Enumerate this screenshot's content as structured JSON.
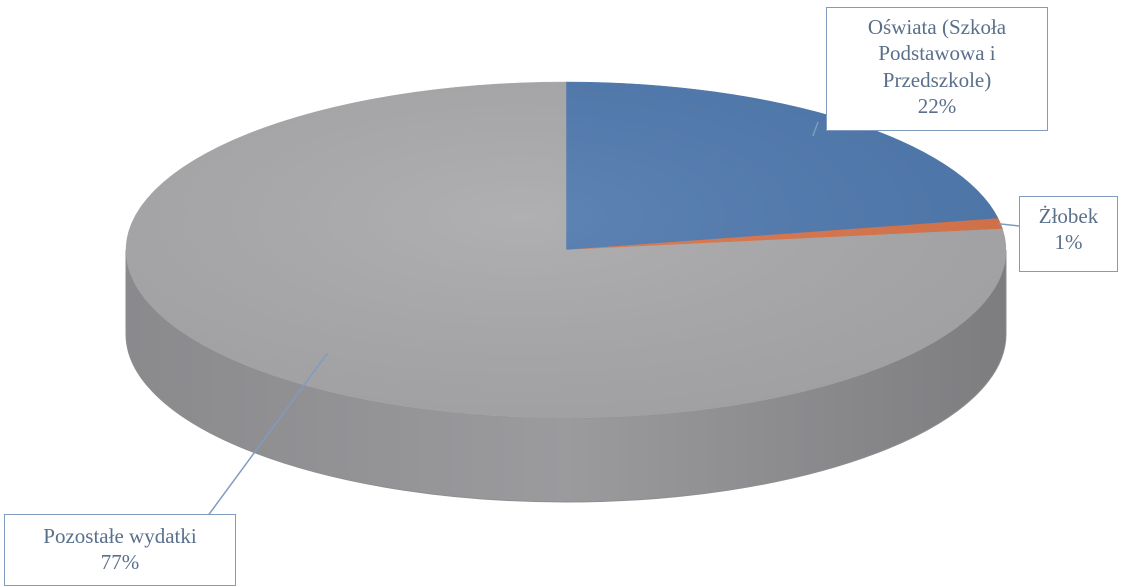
{
  "chart_data": {
    "type": "pie",
    "title": "",
    "slices": [
      {
        "label_lines": [
          "Oświata (Szkoła",
          "Podstawowa i",
          "Przedszkole)"
        ],
        "label": "Oświata (Szkoła Podstawowa i Przedszkole)",
        "percent_label": "22%",
        "value": 22,
        "color": "#4f79ae"
      },
      {
        "label_lines": [
          "Żłobek"
        ],
        "label": "Żłobek",
        "percent_label": "1%",
        "value": 1,
        "color": "#d9744a"
      },
      {
        "label_lines": [
          "Pozostałe wydatki"
        ],
        "label": "Pozostałe wydatki",
        "percent_label": "77%",
        "value": 77,
        "color": "#a9a9ab"
      }
    ],
    "legend": "none",
    "style": "3d"
  }
}
